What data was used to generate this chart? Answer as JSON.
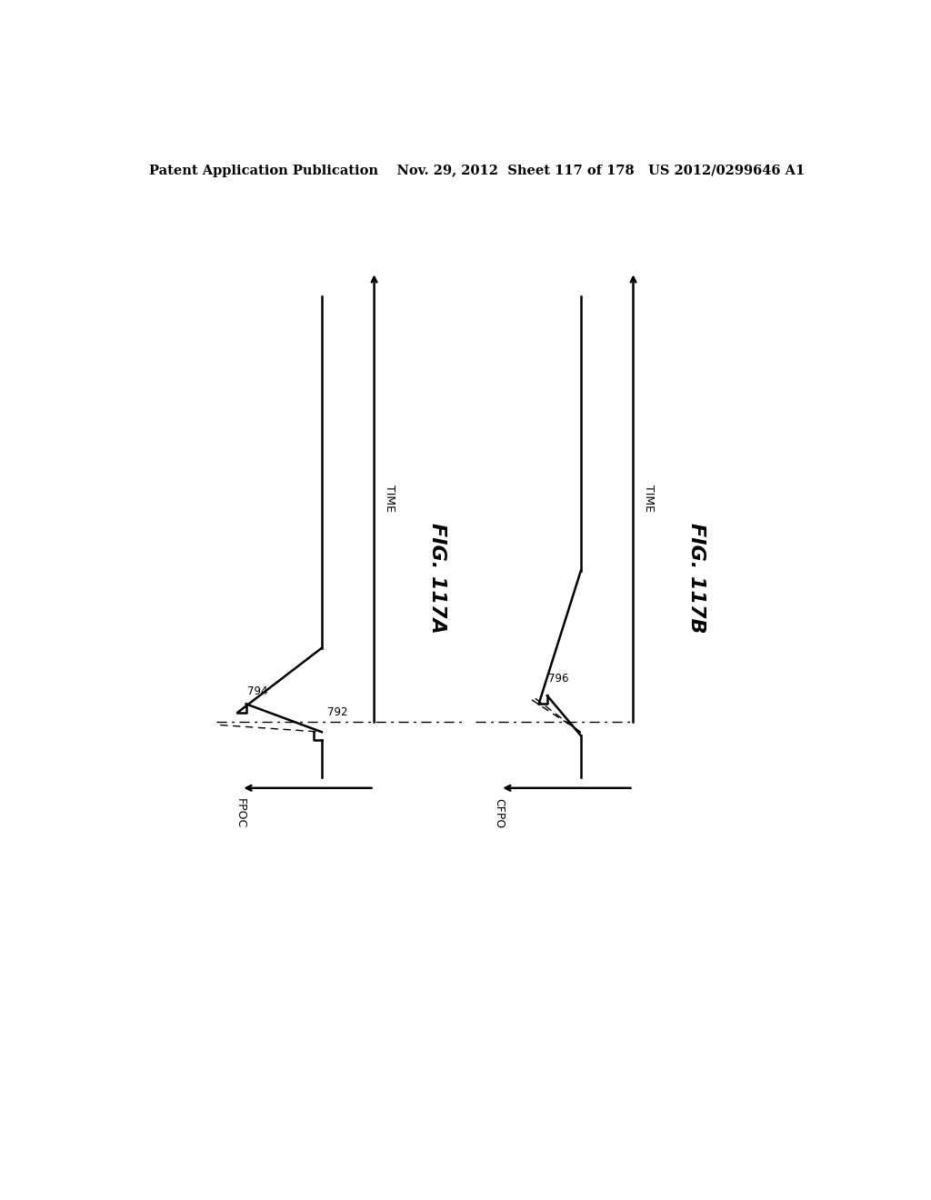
{
  "bg_color": "#ffffff",
  "header_text": "Patent Application Publication    Nov. 29, 2012  Sheet 117 of 178   US 2012/0299646 A1",
  "header_fontsize": 10.5,
  "fig_a_label": "FIG. 117A",
  "fig_b_label": "FIG. 117B",
  "label_fpoc": "FPOC",
  "label_cfpo": "CFPO",
  "label_time": "TIME",
  "label_794": "794",
  "label_792": "792",
  "label_796": "796"
}
